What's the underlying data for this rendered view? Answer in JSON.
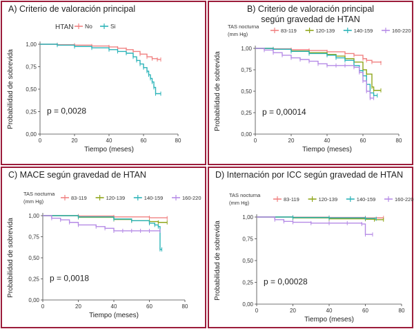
{
  "colors": {
    "frame": "#9b1c3a",
    "s83": "#f08080",
    "s120": "#8fa61a",
    "s140": "#2ab3b8",
    "s160": "#b58ae6",
    "no": "#f08080",
    "si": "#2ab3b8"
  },
  "chart_data": [
    {
      "id": "A",
      "type": "line",
      "subtype": "kaplan-meier",
      "title": "A) Criterio de valoración principal",
      "xlabel": "Tiempo (meses)",
      "ylabel": "Probabilidad de sobrevida",
      "xlim": [
        0,
        80
      ],
      "ylim": [
        0,
        1
      ],
      "xticks": [
        "0",
        "20",
        "40",
        "60",
        "80"
      ],
      "yticks": [
        "0,00",
        "0,25",
        "0,50",
        "0,75",
        "1,00"
      ],
      "legend_title": "HTAN",
      "pvalue": "p = 0,0028",
      "series": [
        {
          "name": "No",
          "color_key": "no",
          "x": [
            0,
            10,
            20,
            30,
            40,
            45,
            50,
            54,
            58,
            62,
            65,
            68,
            70
          ],
          "y": [
            1.0,
            0.995,
            0.99,
            0.98,
            0.97,
            0.955,
            0.94,
            0.92,
            0.89,
            0.86,
            0.84,
            0.83,
            0.83
          ]
        },
        {
          "name": "Si",
          "color_key": "si",
          "x": [
            0,
            10,
            20,
            30,
            40,
            45,
            50,
            54,
            56,
            58,
            60,
            62,
            63,
            64,
            65,
            66,
            67,
            70
          ],
          "y": [
            1.0,
            0.99,
            0.975,
            0.96,
            0.94,
            0.92,
            0.9,
            0.86,
            0.82,
            0.78,
            0.74,
            0.7,
            0.66,
            0.62,
            0.58,
            0.52,
            0.45,
            0.45
          ]
        }
      ]
    },
    {
      "id": "B",
      "type": "line",
      "subtype": "kaplan-meier",
      "title": "B) Criterio de valoración principal",
      "title2": "según gravedad de HTAN",
      "xlabel": "Tiempo (meses)",
      "ylabel": "Probabilidad de sobrevida",
      "xlim": [
        0,
        80
      ],
      "ylim": [
        0,
        1
      ],
      "xticks": [
        "0",
        "20",
        "40",
        "60",
        "80"
      ],
      "yticks": [
        "0,00",
        "0,25",
        "0,50",
        "0,75",
        "1,00"
      ],
      "legend_title": "TAS nocturna",
      "legend_title2": "(mm Hg)",
      "pvalue": "p = 0,00014",
      "series": [
        {
          "name": "83-119",
          "color_key": "s83",
          "x": [
            0,
            10,
            20,
            30,
            40,
            50,
            55,
            60,
            62,
            65,
            70
          ],
          "y": [
            1.0,
            0.995,
            0.985,
            0.975,
            0.96,
            0.94,
            0.92,
            0.88,
            0.86,
            0.84,
            0.83
          ]
        },
        {
          "name": "120-139",
          "color_key": "s120",
          "x": [
            0,
            10,
            20,
            30,
            40,
            45,
            50,
            55,
            60,
            62,
            65,
            66,
            70
          ],
          "y": [
            1.0,
            0.99,
            0.97,
            0.95,
            0.93,
            0.91,
            0.88,
            0.84,
            0.75,
            0.7,
            0.55,
            0.51,
            0.51
          ]
        },
        {
          "name": "140-159",
          "color_key": "s140",
          "x": [
            0,
            10,
            20,
            30,
            40,
            45,
            50,
            55,
            58,
            60,
            62,
            64,
            66,
            68
          ],
          "y": [
            1.0,
            0.99,
            0.965,
            0.94,
            0.92,
            0.89,
            0.86,
            0.8,
            0.74,
            0.68,
            0.58,
            0.48,
            0.45,
            0.45
          ]
        },
        {
          "name": "160-220",
          "color_key": "s160",
          "x": [
            0,
            5,
            10,
            15,
            20,
            25,
            30,
            35,
            40,
            45,
            50,
            55,
            58,
            60,
            62,
            64,
            66
          ],
          "y": [
            1.0,
            0.98,
            0.95,
            0.92,
            0.89,
            0.87,
            0.85,
            0.82,
            0.8,
            0.8,
            0.8,
            0.78,
            0.72,
            0.62,
            0.5,
            0.42,
            0.42
          ]
        }
      ]
    },
    {
      "id": "C",
      "type": "line",
      "subtype": "kaplan-meier",
      "title": "C) MACE según gravedad de HTAN",
      "xlabel": "Tiempo (meses)",
      "ylabel": "Probabilidad de sobrevida",
      "xlim": [
        0,
        80
      ],
      "ylim": [
        0,
        1
      ],
      "xticks": [
        "0",
        "20",
        "40",
        "60",
        "80"
      ],
      "yticks": [
        "0,00",
        "0,25",
        "0,50",
        "0,75",
        "1,00"
      ],
      "legend_title": "TAS nocturna",
      "legend_title2": "(mm Hg)",
      "pvalue": "p = 0,0018",
      "series": [
        {
          "name": "83-119",
          "color_key": "s83",
          "x": [
            0,
            20,
            40,
            60,
            70
          ],
          "y": [
            1.0,
            0.995,
            0.985,
            0.975,
            0.97
          ]
        },
        {
          "name": "120-139",
          "color_key": "s120",
          "x": [
            0,
            20,
            40,
            50,
            60,
            65,
            70
          ],
          "y": [
            1.0,
            0.98,
            0.955,
            0.94,
            0.93,
            0.92,
            0.92
          ]
        },
        {
          "name": "140-159",
          "color_key": "s140",
          "x": [
            0,
            20,
            40,
            50,
            60,
            63,
            65,
            66,
            67
          ],
          "y": [
            1.0,
            0.985,
            0.96,
            0.94,
            0.91,
            0.89,
            0.87,
            0.6,
            0.6
          ]
        },
        {
          "name": "160-220",
          "color_key": "s160",
          "x": [
            0,
            5,
            10,
            15,
            20,
            30,
            35,
            40,
            45,
            50,
            55,
            60,
            66
          ],
          "y": [
            1.0,
            0.97,
            0.95,
            0.92,
            0.89,
            0.87,
            0.85,
            0.82,
            0.82,
            0.82,
            0.82,
            0.82,
            0.82
          ]
        }
      ]
    },
    {
      "id": "D",
      "type": "line",
      "subtype": "kaplan-meier",
      "title": "D) Internación por ICC según gravedad de HTAN",
      "xlabel": "Tiempo (meses)",
      "ylabel": "Probabilidad de sobrevida",
      "xlim": [
        0,
        80
      ],
      "ylim": [
        0,
        1
      ],
      "xticks": [
        "0",
        "20",
        "40",
        "60",
        "80"
      ],
      "yticks": [
        "0,00",
        "0,25",
        "0,50",
        "0,75",
        "1,00"
      ],
      "legend_title": "TAS nocturna",
      "legend_title2": "(mm Hg)",
      "pvalue": "p = 0,00028",
      "series": [
        {
          "name": "83-119",
          "color_key": "s83",
          "x": [
            0,
            20,
            40,
            60,
            70
          ],
          "y": [
            1.0,
            0.998,
            0.995,
            0.99,
            0.99
          ]
        },
        {
          "name": "120-139",
          "color_key": "s120",
          "x": [
            0,
            20,
            40,
            60,
            65,
            70
          ],
          "y": [
            1.0,
            0.99,
            0.98,
            0.975,
            0.97,
            0.97
          ]
        },
        {
          "name": "140-159",
          "color_key": "s140",
          "x": [
            0,
            20,
            40,
            60,
            66
          ],
          "y": [
            1.0,
            0.995,
            0.99,
            0.985,
            0.98
          ]
        },
        {
          "name": "160-220",
          "color_key": "s160",
          "x": [
            0,
            10,
            15,
            20,
            30,
            40,
            50,
            58,
            60,
            64
          ],
          "y": [
            1.0,
            0.97,
            0.95,
            0.94,
            0.93,
            0.93,
            0.93,
            0.92,
            0.8,
            0.8
          ]
        }
      ]
    }
  ]
}
